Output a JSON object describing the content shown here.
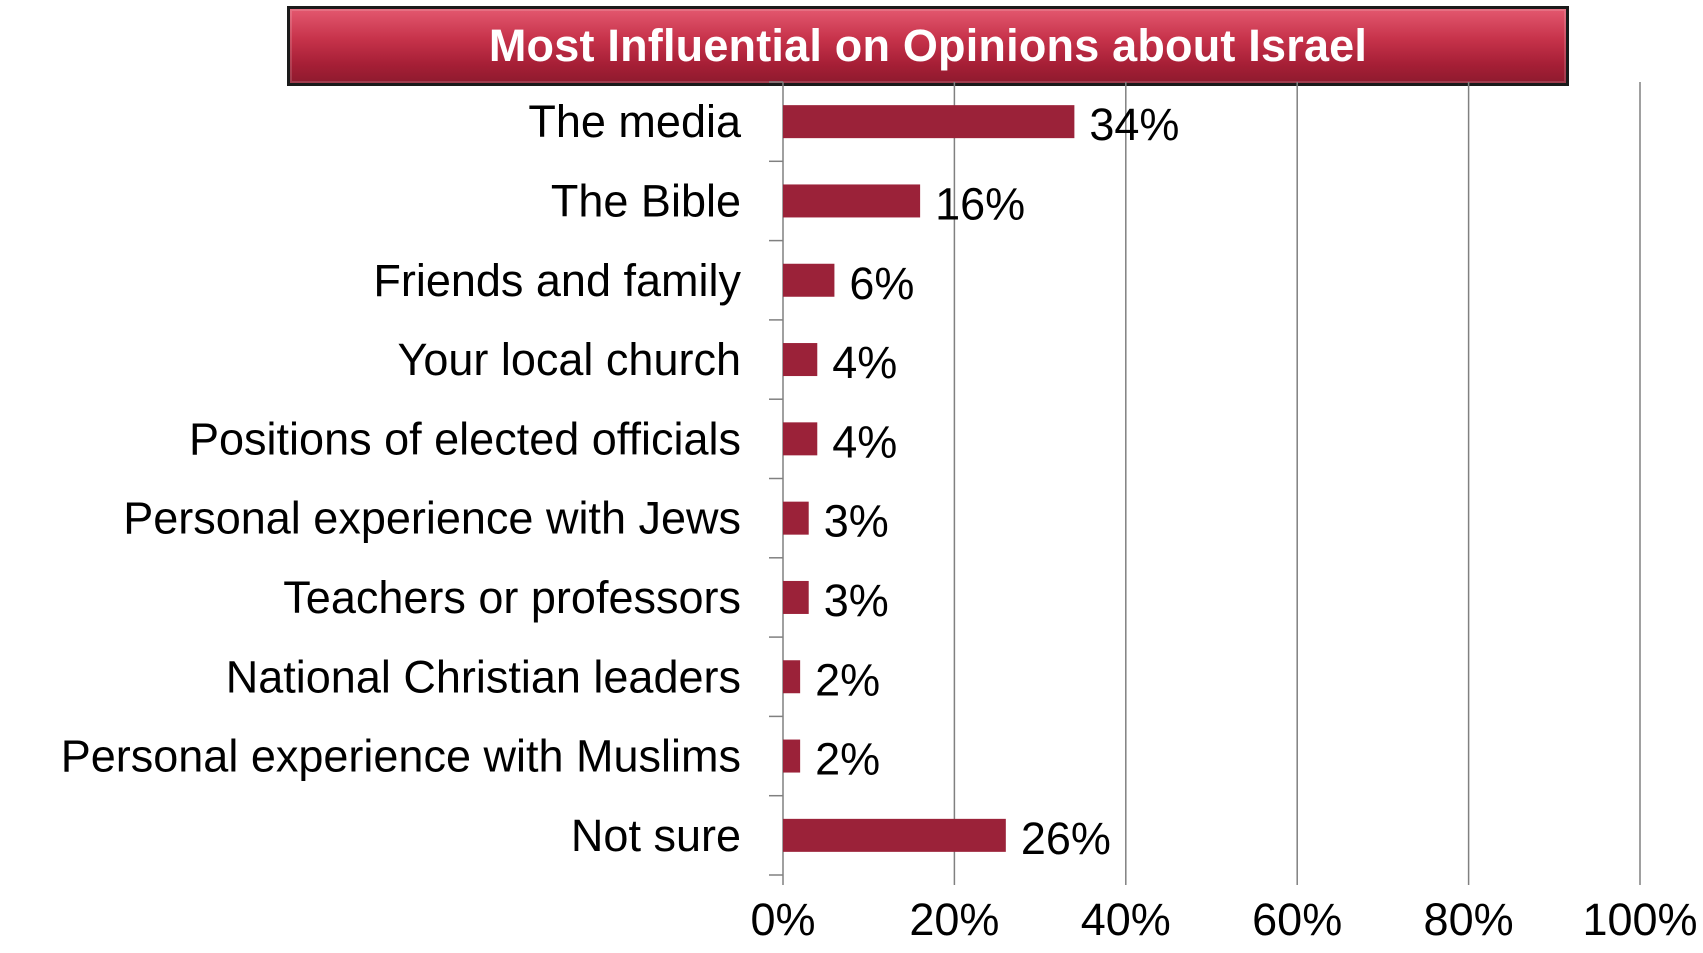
{
  "chart_data": {
    "type": "bar",
    "orientation": "horizontal",
    "title": "Most Influential on Opinions about Israel",
    "categories": [
      "The media",
      "The Bible",
      "Friends and family",
      "Your local church",
      "Positions of elected officials",
      "Personal experience with Jews",
      "Teachers or professors",
      "National Christian leaders",
      "Personal experience with Muslims",
      "Not sure"
    ],
    "values": [
      34,
      16,
      6,
      4,
      4,
      3,
      3,
      2,
      2,
      26
    ],
    "value_labels": [
      "34%",
      "16%",
      "6%",
      "4%",
      "4%",
      "3%",
      "3%",
      "2%",
      "2%",
      "26%"
    ],
    "xlim": [
      0,
      100
    ],
    "x_ticks": [
      0,
      20,
      40,
      60,
      80,
      100
    ],
    "x_tick_labels": [
      "0%",
      "20%",
      "40%",
      "60%",
      "80%",
      "100%"
    ],
    "grid": "vertical",
    "legend": "none",
    "colors": {
      "bar": "#9b2239",
      "banner": "#b8283f",
      "gridline": "#808080"
    }
  }
}
